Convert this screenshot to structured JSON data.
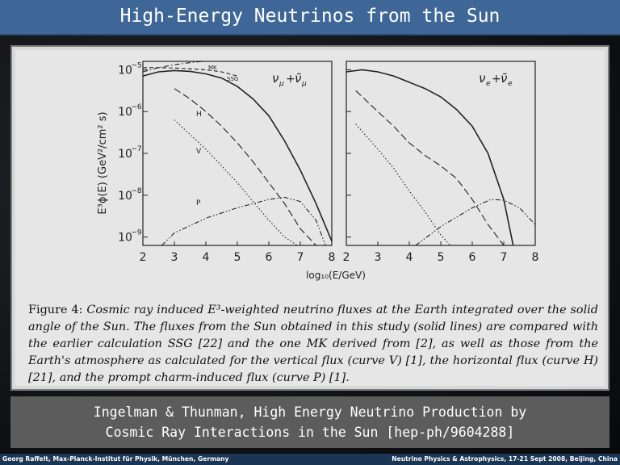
{
  "slide": {
    "title": "High-Energy Neutrinos from the Sun"
  },
  "figure": {
    "ylabel": "E³ϕ(E)  (GeV²/cm² s)",
    "xlabel": "log₁₀(E/GeV)",
    "y_ticks": [
      "10",
      "10",
      "10",
      "10",
      "10"
    ],
    "y_exponents": [
      "−5",
      "−6",
      "−7",
      "−8",
      "−9"
    ],
    "left_x_ticks": [
      "2",
      "3",
      "4",
      "5",
      "6",
      "7",
      "8"
    ],
    "right_x_ticks": [
      "2",
      "3",
      "4",
      "5",
      "6",
      "7",
      "8"
    ],
    "curve_labels": {
      "mk": "MK",
      "ssg": "SSG",
      "h": "H",
      "v": "V",
      "p": "P"
    },
    "panel_left_title": "ν",
    "panel_left_sub": "μ",
    "panel_left_plus": "+",
    "panel_left_nubar": "ν̄",
    "panel_right_title": "ν",
    "panel_right_sub": "e",
    "panel_right_plus": "+",
    "panel_right_nubar": "ν̄",
    "caption_label": "Figure 4:",
    "caption_text": "Cosmic ray induced E³-weighted neutrino fluxes at the Earth integrated over the solid angle of the Sun. The fluxes from the Sun obtained in this study (solid lines) are compared with the earlier calculation SSG [22] and the one MK derived from [2], as well as those from the Earth's atmosphere as calculated for the vertical flux (curve V) [1], the horizontal flux (curve H) [21], and the prompt charm-induced flux (curve P) [1]."
  },
  "chart_data": [
    {
      "type": "line",
      "panel": "left",
      "xlabel": "log₁₀(E/GeV)",
      "ylabel": "E³ϕ(E)  (GeV²/cm² s)",
      "xlim": [
        2,
        8
      ],
      "ylim_log10": [
        -9.2,
        -4.8
      ],
      "y_scale": "log",
      "series": [
        {
          "name": "",
          "style": "solid",
          "x": [
            2,
            2.5,
            3,
            3.5,
            4,
            4.5,
            5,
            5.5,
            6,
            6.5,
            7,
            7.5,
            8
          ],
          "log10_y": [
            -5.15,
            -5.05,
            -5.02,
            -5.04,
            -5.1,
            -5.2,
            -5.4,
            -5.7,
            -6.1,
            -6.7,
            -7.4,
            -8.2,
            -9.1
          ]
        },
        {
          "name": "MK",
          "style": "dash-dot",
          "x": [
            2,
            2.5,
            3,
            3.5,
            3.9
          ],
          "log10_y": [
            -5.05,
            -4.95,
            -4.88,
            -4.83,
            -4.8
          ]
        },
        {
          "name": "SSG",
          "style": "dashed",
          "x": [
            2,
            2.5,
            3,
            3.5,
            4,
            4.5,
            5
          ],
          "log10_y": [
            -4.95,
            -4.95,
            -4.96,
            -4.98,
            -5.0,
            -5.05,
            -5.15
          ]
        },
        {
          "name": "H",
          "style": "long-dash",
          "x": [
            3,
            3.5,
            4,
            4.5,
            5,
            5.5,
            6,
            6.5,
            7,
            7.5
          ],
          "log10_y": [
            -5.45,
            -5.7,
            -6.0,
            -6.35,
            -6.75,
            -7.2,
            -7.7,
            -8.2,
            -8.8,
            -9.2
          ]
        },
        {
          "name": "V",
          "style": "dotted",
          "x": [
            3,
            3.5,
            4,
            4.5,
            5,
            5.5,
            6,
            6.5,
            6.9
          ],
          "log10_y": [
            -6.2,
            -6.55,
            -6.9,
            -7.3,
            -7.7,
            -8.15,
            -8.6,
            -9.0,
            -9.2
          ]
        },
        {
          "name": "P",
          "style": "dash-dot-dot",
          "x": [
            2.6,
            3,
            4,
            5,
            6,
            6.5,
            7,
            7.5,
            7.8
          ],
          "log10_y": [
            -9.2,
            -8.9,
            -8.55,
            -8.3,
            -8.1,
            -8.05,
            -8.15,
            -8.6,
            -9.2
          ]
        }
      ]
    },
    {
      "type": "line",
      "panel": "right",
      "xlabel": "log₁₀(E/GeV)",
      "xlim": [
        2,
        8
      ],
      "ylim_log10": [
        -9.2,
        -4.8
      ],
      "y_scale": "log",
      "series": [
        {
          "name": "",
          "style": "solid",
          "x": [
            2,
            2.5,
            3,
            3.5,
            4,
            4.5,
            5,
            5.5,
            6,
            6.5,
            7,
            7.3
          ],
          "log10_y": [
            -5.05,
            -5.0,
            -5.05,
            -5.15,
            -5.3,
            -5.45,
            -5.65,
            -5.95,
            -6.35,
            -7.0,
            -8.1,
            -9.2
          ]
        },
        {
          "name": "H",
          "style": "long-dash",
          "x": [
            2.3,
            3,
            3.5,
            4,
            4.5,
            5,
            5.5,
            6,
            6.5,
            7
          ],
          "log10_y": [
            -5.5,
            -6.0,
            -6.35,
            -6.75,
            -7.05,
            -7.3,
            -7.6,
            -8.1,
            -8.7,
            -9.2
          ]
        },
        {
          "name": "V",
          "style": "dotted",
          "x": [
            2.3,
            3,
            3.5,
            4,
            4.5,
            5,
            5.3
          ],
          "log10_y": [
            -6.3,
            -6.9,
            -7.35,
            -7.9,
            -8.4,
            -8.95,
            -9.2
          ]
        },
        {
          "name": "P",
          "style": "dash-dot-dot",
          "x": [
            4.2,
            5,
            6,
            6.6,
            7,
            7.5,
            8
          ],
          "log10_y": [
            -9.2,
            -8.75,
            -8.3,
            -8.1,
            -8.12,
            -8.3,
            -8.7
          ]
        }
      ]
    }
  ],
  "reference": {
    "line1": "Ingelman & Thunman, High Energy Neutrino Production by",
    "line2": "Cosmic Ray Interactions in the Sun [hep-ph/9604288]"
  },
  "footer": {
    "left": "Georg Raffelt, Max-Planck-Institut für Physik, München, Germany",
    "right": "Neutrino Physics & Astrophysics, 17-21 Sept 2008, Beijing, China"
  }
}
